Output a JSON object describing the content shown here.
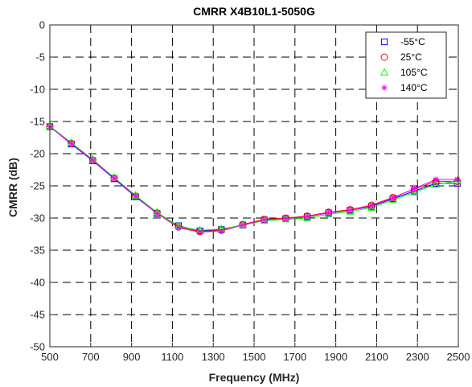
{
  "chart_data": {
    "type": "line",
    "title": "CMRR  X4B10L1-5050G",
    "xlabel": "Frequency (MHz)",
    "ylabel": "CMRR (dB)",
    "xlim": [
      500,
      2500
    ],
    "ylim": [
      -50,
      0
    ],
    "x_ticks": [
      "500",
      "700",
      "900",
      "1100",
      "1300",
      "1500",
      "1700",
      "1900",
      "2100",
      "2300",
      "2500"
    ],
    "y_ticks": [
      "0",
      "-5",
      "-10",
      "-15",
      "-20",
      "-25",
      "-30",
      "-35",
      "-40",
      "-45",
      "-50"
    ],
    "grid": true,
    "legend_position": "top-right",
    "x": [
      500,
      605,
      710,
      815,
      920,
      1025,
      1130,
      1235,
      1340,
      1445,
      1550,
      1655,
      1760,
      1865,
      1970,
      2075,
      2180,
      2285,
      2390,
      2495
    ],
    "series": [
      {
        "name": "-55°C",
        "marker": "square",
        "color": "#0000ff",
        "values": [
          -15.8,
          -18.5,
          -21.1,
          -23.9,
          -26.7,
          -29.3,
          -31.2,
          -32.0,
          -31.8,
          -31.1,
          -30.3,
          -30.1,
          -29.8,
          -29.2,
          -28.8,
          -28.2,
          -27.0,
          -25.8,
          -24.6,
          -24.6
        ]
      },
      {
        "name": "25°C",
        "marker": "circle",
        "color": "#ff0000",
        "values": [
          -15.8,
          -18.4,
          -21.0,
          -23.8,
          -26.6,
          -29.2,
          -31.4,
          -32.1,
          -31.9,
          -31.0,
          -30.2,
          -30.0,
          -29.7,
          -29.1,
          -28.7,
          -28.0,
          -26.8,
          -25.5,
          -24.3,
          -24.3
        ]
      },
      {
        "name": "105°C",
        "marker": "triangle",
        "color": "#00ff00",
        "values": [
          -15.7,
          -18.3,
          -20.9,
          -23.7,
          -26.5,
          -29.1,
          -31.3,
          -31.9,
          -31.7,
          -31.1,
          -30.4,
          -30.2,
          -30.0,
          -29.4,
          -29.0,
          -28.4,
          -27.2,
          -26.0,
          -24.8,
          -24.2
        ]
      },
      {
        "name": "140°C",
        "marker": "asterisk",
        "color": "#ff00ff",
        "values": [
          -15.8,
          -18.4,
          -21.0,
          -23.8,
          -26.6,
          -29.3,
          -31.5,
          -32.2,
          -32.0,
          -31.1,
          -30.3,
          -30.1,
          -29.8,
          -29.2,
          -28.8,
          -28.1,
          -26.9,
          -25.4,
          -24.0,
          -24.0
        ]
      }
    ]
  }
}
